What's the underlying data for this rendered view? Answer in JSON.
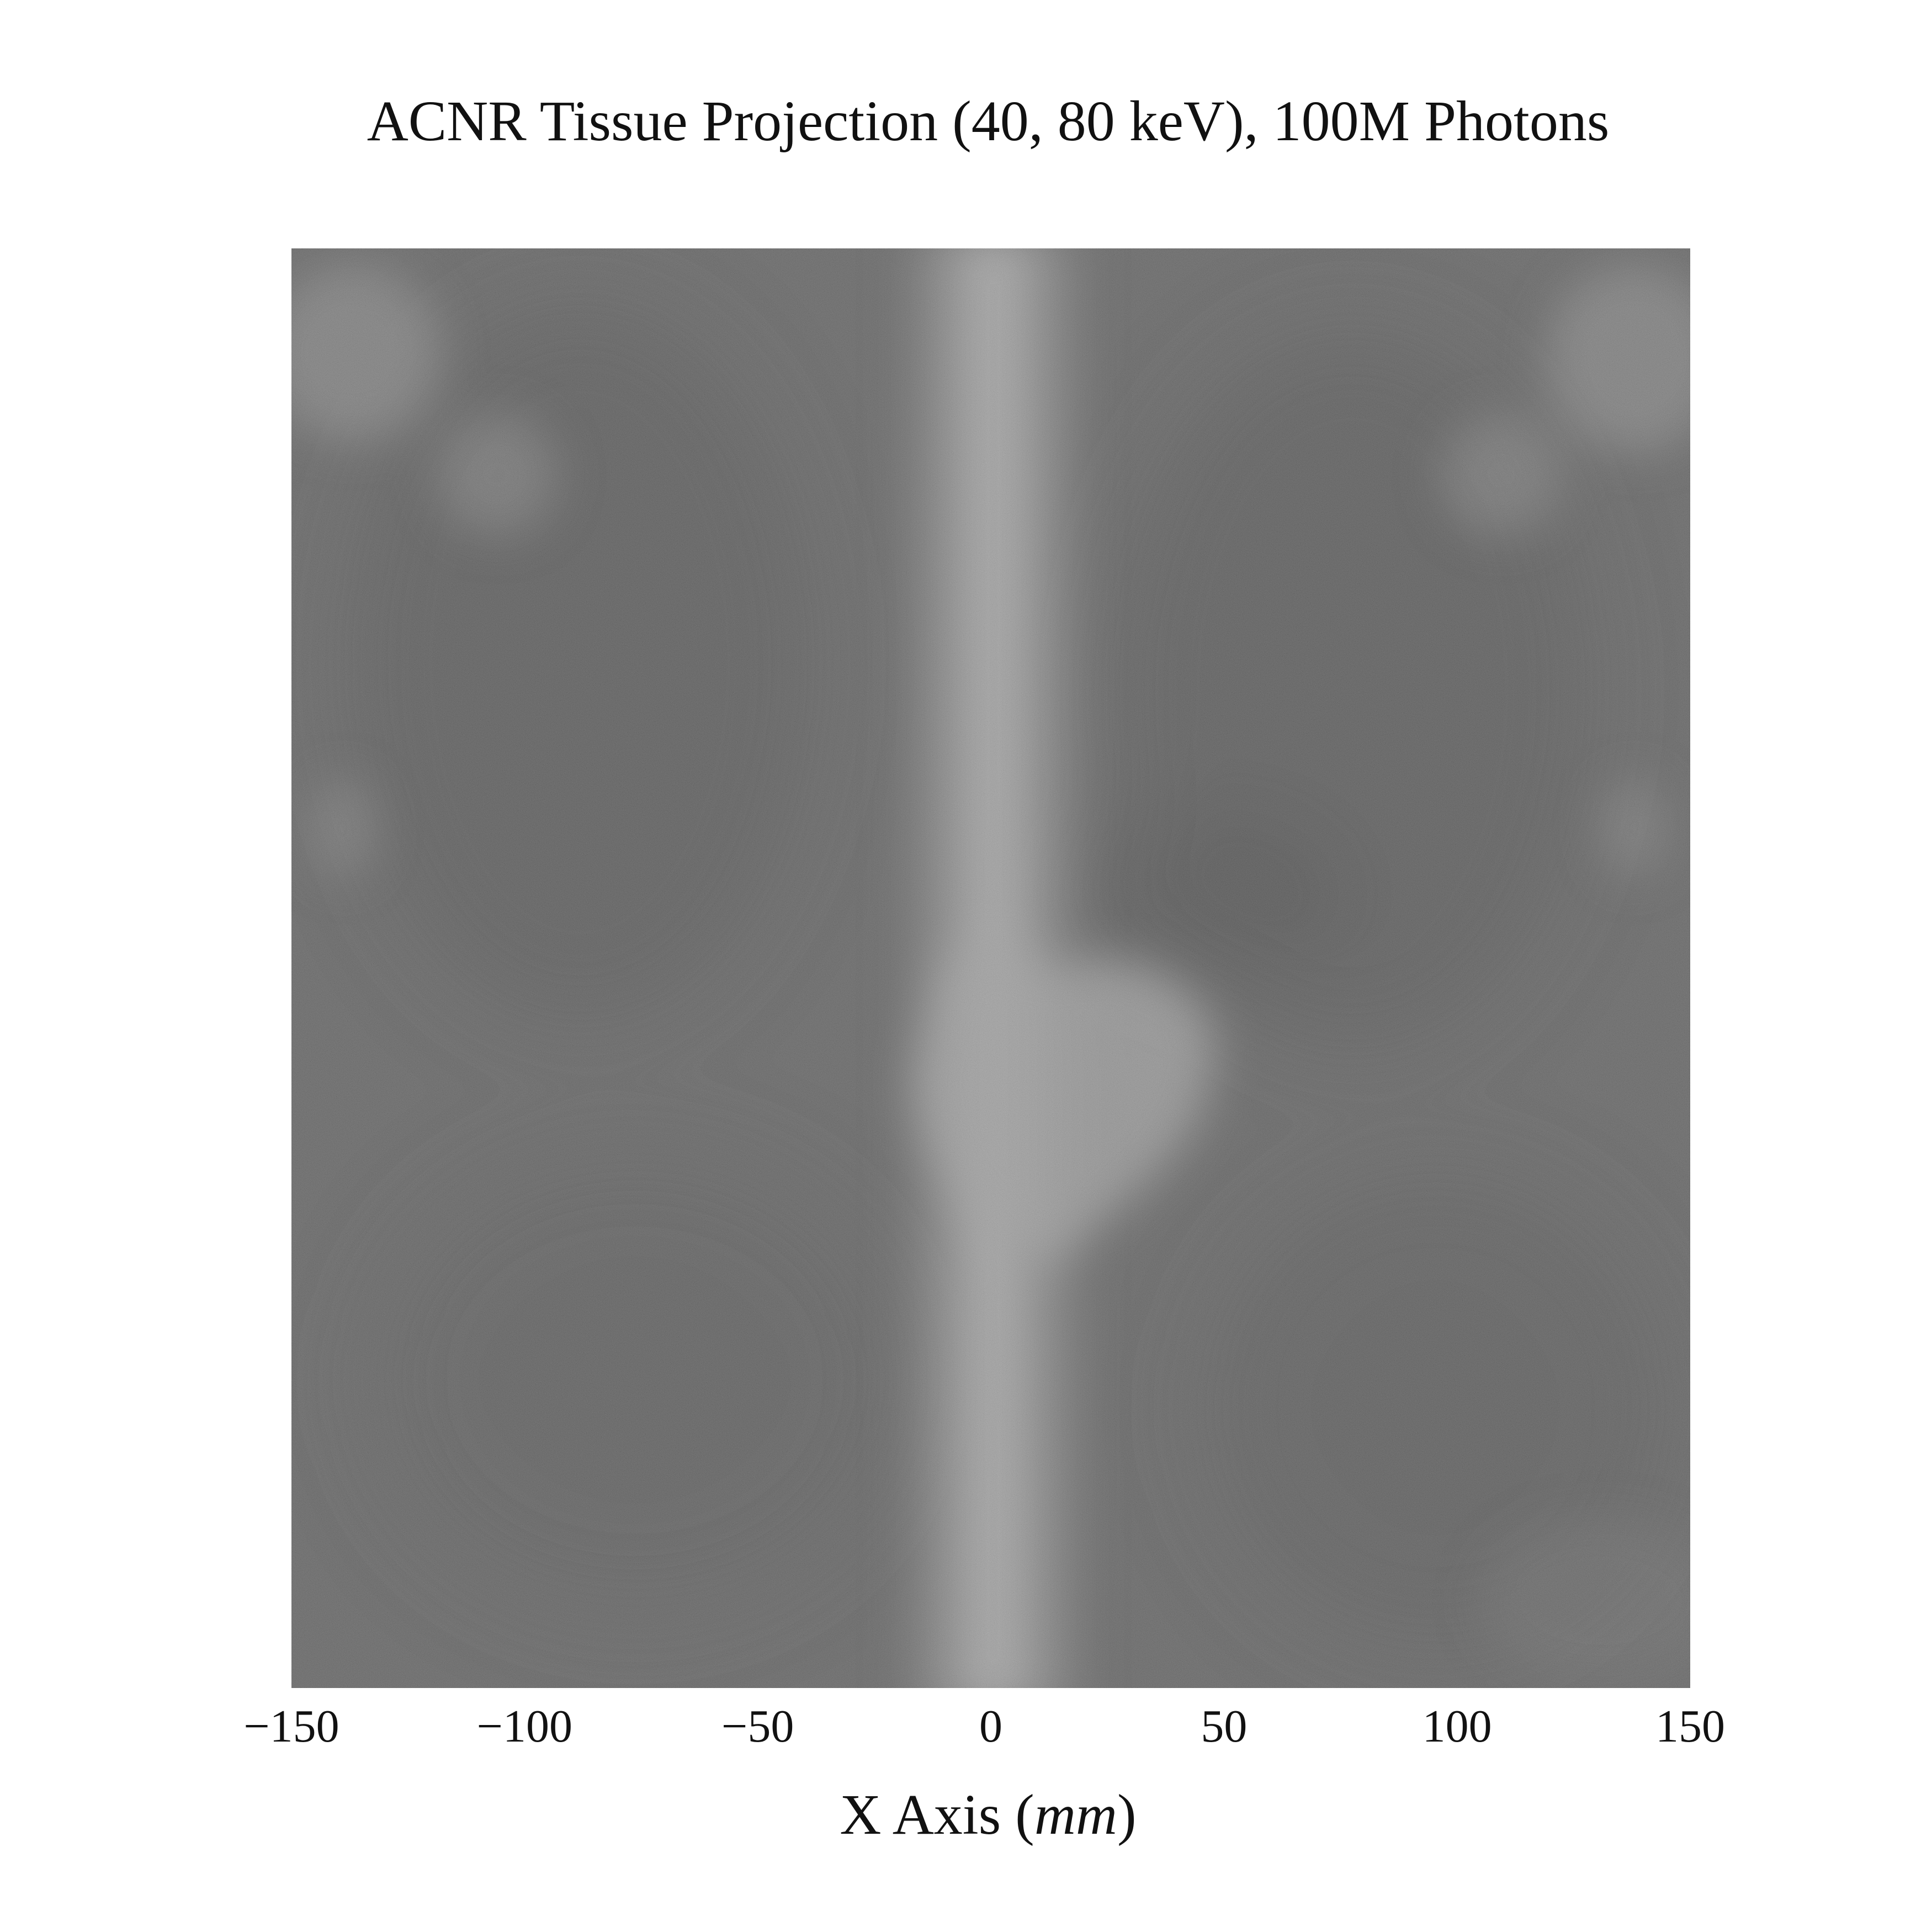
{
  "chart_data": {
    "type": "heatmap",
    "title": "ACNR Tissue Projection (40, 80 keV), 100M Photons",
    "xlabel": "X Axis (mm)",
    "xlabel_parts": {
      "text": "X Axis (",
      "unit": "mm",
      "close": ")"
    },
    "ylabel": "",
    "xlim": [
      -150,
      150
    ],
    "x_ticks": [
      -150,
      -100,
      -50,
      0,
      50,
      100,
      150
    ],
    "x_tick_labels": [
      "−150",
      "−100",
      "−50",
      "0",
      "50",
      "100",
      "150"
    ],
    "colormap": "gray",
    "grid": false,
    "colorbar": false,
    "image_description": "grayscale noisy projection image, bright vertical spine band centered near x = 0 mm, bright heart-shaped region right of center, darker lung fields on both sides",
    "colors": {
      "background_mean": "#545454",
      "dark_region": "#4a4a4a",
      "bright_region": "#a0a0a0",
      "text": "#111111"
    }
  }
}
